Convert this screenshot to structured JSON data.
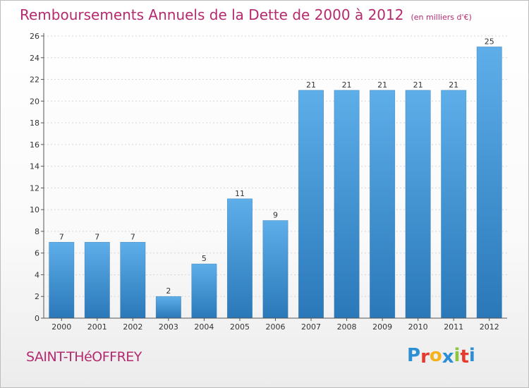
{
  "title": "Remboursements Annuels de la Dette de 2000 à 2012",
  "unit": "(en milliers d'€)",
  "commune": "SAINT-THéOFFREY",
  "logo": {
    "letters": [
      "P",
      "r",
      "o",
      "x",
      "i",
      "t",
      "i"
    ],
    "colors": [
      "#2c8fd6",
      "#e63a2e",
      "#f4b21c",
      "#2c8fd6",
      "#8cc63f",
      "#e63a2e",
      "#2c8fd6"
    ]
  },
  "chart_data": {
    "type": "bar",
    "categories": [
      "2000",
      "2001",
      "2002",
      "2003",
      "2004",
      "2005",
      "2006",
      "2007",
      "2008",
      "2009",
      "2010",
      "2011",
      "2012"
    ],
    "values": [
      7,
      7,
      7,
      2,
      5,
      11,
      9,
      21,
      21,
      21,
      21,
      21,
      25
    ],
    "value_labels": [
      "7",
      "7",
      "7",
      "2",
      "5",
      "11",
      "9",
      "21",
      "21",
      "21",
      "21",
      "21",
      "25"
    ],
    "ylim": [
      0,
      26
    ],
    "yticks": [
      0,
      2,
      4,
      6,
      8,
      10,
      12,
      14,
      16,
      18,
      20,
      22,
      24,
      26
    ],
    "grid": true,
    "bar_color": "#3d93d6"
  }
}
